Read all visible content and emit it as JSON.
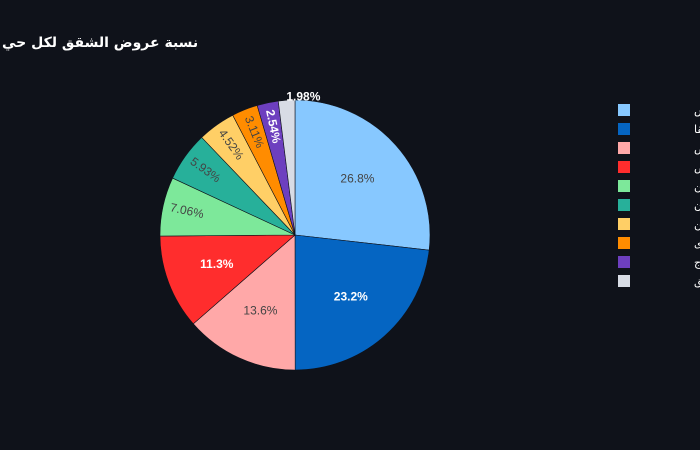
{
  "chart_data": {
    "type": "pie",
    "title": "نسبة عروض الشقق لكل حي",
    "legend_position": "right",
    "direction": "clockwise",
    "slices": [
      {
        "label": "حي النرجس",
        "value": 26.8,
        "display": "26.8%",
        "color": "#87c8ff",
        "text_color": "#444444",
        "bold": false
      },
      {
        "label": "حي الملقا",
        "value": 23.2,
        "display": "23.2%",
        "color": "#0565c2",
        "text_color": "#ffffff",
        "bold": true
      },
      {
        "label": "حي العارض",
        "value": 13.6,
        "display": "13.6%",
        "color": "#ffa8a8",
        "text_color": "#444444",
        "bold": false
      },
      {
        "label": "الرياض",
        "value": 11.3,
        "display": "11.3%",
        "color": "#ff2d2d",
        "text_color": "#ffffff",
        "bold": true
      },
      {
        "label": "حي الياسمين",
        "value": 7.06,
        "display": "7.06%",
        "color": "#7de89a",
        "text_color": "#444444",
        "bold": false
      },
      {
        "label": "حي القيروان",
        "value": 5.93,
        "display": "5.93%",
        "color": "#27b09a",
        "text_color": "#444444",
        "bold": false
      },
      {
        "label": "حي حطين",
        "value": 4.52,
        "display": "4.52%",
        "color": "#ffcf66",
        "text_color": "#444444",
        "bold": false
      },
      {
        "label": "حي الندى",
        "value": 3.11,
        "display": "3.11%",
        "color": "#ff8c00",
        "text_color": "#444444",
        "bold": false
      },
      {
        "label": "حي المروج",
        "value": 2.54,
        "display": "2.54%",
        "color": "#6d3fbf",
        "text_color": "#ffffff",
        "bold": true
      },
      {
        "label": "حي العقيق",
        "value": 1.98,
        "display": "1.98%",
        "color": "#d8dce5",
        "text_color": "#ffffff",
        "bold": true
      }
    ]
  }
}
